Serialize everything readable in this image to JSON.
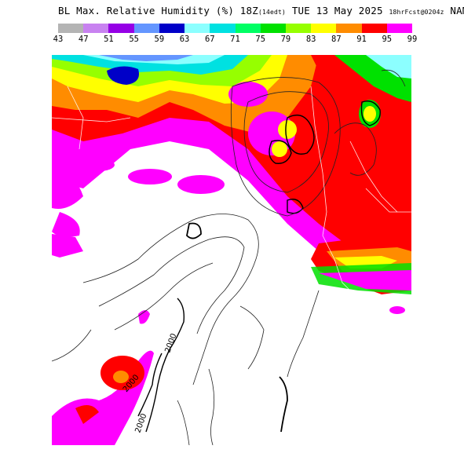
{
  "title": {
    "main": "BL Max. Relative Humidity (%) 18Z",
    "local_time": "(14edt)",
    "date": "TUE 13 May 2025",
    "forecast": "18hrFcst@0204z",
    "model": "NAM"
  },
  "legend": {
    "ticks": [
      "43",
      "47",
      "51",
      "55",
      "59",
      "63",
      "67",
      "71",
      "75",
      "79",
      "83",
      "87",
      "91",
      "95",
      "99"
    ],
    "colors": [
      "#b4b4b4",
      "#c882f0",
      "#9600e6",
      "#6496ff",
      "#0000c8",
      "#8cffff",
      "#00e1e1",
      "#00ff64",
      "#00e100",
      "#96ff00",
      "#ffff00",
      "#ff8c00",
      "#ff0000",
      "#ff00ff"
    ]
  },
  "map": {
    "contour_labels": [
      "2000",
      "2000",
      "2000"
    ]
  }
}
